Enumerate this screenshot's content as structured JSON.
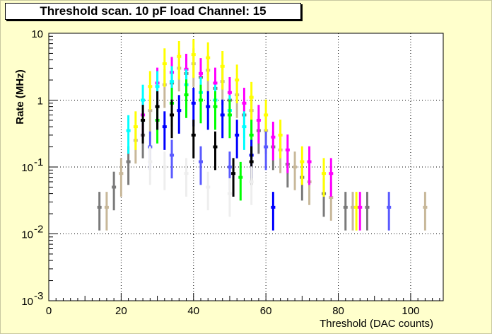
{
  "chart_data": {
    "type": "scatter",
    "title": "Threshold scan. 10 pF load Channel: 15",
    "xlabel": "Threshold (DAC counts)",
    "ylabel": "Rate (MHz)",
    "xlim": [
      0,
      109
    ],
    "ylim": [
      0.001,
      10
    ],
    "yscale": "log",
    "grid": true,
    "x_ticks": [
      0,
      20,
      40,
      60,
      80,
      100
    ],
    "y_ticks": [
      {
        "value": 0.001,
        "label": "10",
        "exp": "-3"
      },
      {
        "value": 0.01,
        "label": "10",
        "exp": "-2"
      },
      {
        "value": 0.1,
        "label": "10",
        "exp": "-1"
      },
      {
        "value": 1,
        "label": "1",
        "exp": ""
      },
      {
        "value": 10,
        "label": "10",
        "exp": ""
      }
    ],
    "colors": {
      "frame_bg": "#ffffcc",
      "plot_bg": "#ffffff",
      "series": [
        "#c8b89a",
        "#7a7a7a",
        "#ffff00",
        "#ff00ff",
        "#00ffff",
        "#00ff00",
        "#0000ff",
        "#000000",
        "#5a5aff",
        "#eeeeee"
      ]
    },
    "series": [
      {
        "color": "#7a7a7a",
        "points": [
          [
            14,
            0.025
          ],
          [
            18,
            0.05
          ],
          [
            22,
            0.12
          ],
          [
            26,
            0.3
          ],
          [
            30,
            0.8
          ],
          [
            34,
            1.8
          ],
          [
            38,
            2.5
          ],
          [
            42,
            2.2
          ],
          [
            46,
            1.5
          ],
          [
            50,
            1.0
          ],
          [
            54,
            0.6
          ],
          [
            58,
            0.35
          ],
          [
            62,
            0.2
          ],
          [
            66,
            0.11
          ],
          [
            70,
            0.07
          ],
          [
            76,
            0.04
          ],
          [
            82,
            0.025
          ],
          [
            88,
            0.025
          ]
        ]
      },
      {
        "color": "#c8b89a",
        "points": [
          [
            16,
            0.025
          ],
          [
            20,
            0.08
          ],
          [
            24,
            0.25
          ],
          [
            28,
            0.7
          ],
          [
            32,
            1.7
          ],
          [
            36,
            3.0
          ],
          [
            40,
            3.5
          ],
          [
            44,
            2.8
          ],
          [
            48,
            1.9
          ],
          [
            52,
            1.2
          ],
          [
            56,
            0.7
          ],
          [
            60,
            0.35
          ],
          [
            64,
            0.18
          ],
          [
            68,
            0.1
          ],
          [
            72,
            0.06
          ],
          [
            78,
            0.035
          ],
          [
            84,
            0.025
          ],
          [
            104,
            0.025
          ]
        ]
      },
      {
        "color": "#ffff00",
        "points": [
          [
            24,
            0.4
          ],
          [
            28,
            1.6
          ],
          [
            32,
            3.5
          ],
          [
            36,
            4.5
          ],
          [
            40,
            4.8
          ],
          [
            44,
            4.3
          ],
          [
            48,
            3.2
          ],
          [
            52,
            2.0
          ],
          [
            56,
            1.1
          ],
          [
            60,
            0.6
          ],
          [
            64,
            0.3
          ],
          [
            70,
            0.12
          ],
          [
            76,
            0.08
          ],
          [
            85,
            0.025
          ]
        ]
      },
      {
        "color": "#ff00ff",
        "points": [
          [
            26,
            0.6
          ],
          [
            30,
            1.8
          ],
          [
            34,
            2.6
          ],
          [
            38,
            2.9
          ],
          [
            42,
            2.5
          ],
          [
            46,
            1.8
          ],
          [
            50,
            1.3
          ],
          [
            54,
            0.9
          ],
          [
            58,
            0.5
          ],
          [
            62,
            0.28
          ],
          [
            66,
            0.18
          ],
          [
            72,
            0.12
          ],
          [
            78,
            0.08
          ],
          [
            86,
            0.025
          ]
        ]
      },
      {
        "color": "#00ffff",
        "points": [
          [
            22,
            0.35
          ],
          [
            26,
            1.0
          ],
          [
            30,
            1.6
          ],
          [
            34,
            1.9
          ],
          [
            38,
            1.7
          ],
          [
            42,
            1.3
          ],
          [
            46,
            1.0
          ],
          [
            50,
            0.7
          ],
          [
            54,
            0.4
          ]
        ]
      },
      {
        "color": "#00ff00",
        "points": [
          [
            30,
            0.5
          ],
          [
            34,
            0.9
          ],
          [
            38,
            1.2
          ],
          [
            42,
            1.0
          ],
          [
            46,
            0.8
          ],
          [
            50,
            0.6
          ],
          [
            53,
            0.07
          ],
          [
            56,
            0.3
          ]
        ]
      },
      {
        "color": "#0000ff",
        "points": [
          [
            32,
            0.4
          ],
          [
            36,
            0.7
          ],
          [
            40,
            0.9
          ],
          [
            44,
            0.8
          ],
          [
            48,
            0.6
          ],
          [
            52,
            0.3
          ],
          [
            56,
            0.15
          ],
          [
            62,
            0.025
          ]
        ]
      },
      {
        "color": "#000000",
        "points": [
          [
            26,
            0.5
          ],
          [
            30,
            0.8
          ],
          [
            34,
            0.6
          ],
          [
            40,
            0.3
          ],
          [
            46,
            0.2
          ],
          [
            51,
            0.08
          ],
          [
            56,
            0.12
          ]
        ]
      },
      {
        "color": "#5a5aff",
        "points": [
          [
            28,
            0.2
          ],
          [
            34,
            0.15
          ],
          [
            42,
            0.12
          ],
          [
            50,
            0.1
          ],
          [
            60,
            0.2
          ],
          [
            94,
            0.025
          ]
        ]
      },
      {
        "color": "#eeeeee",
        "points": [
          [
            28,
            0.12
          ],
          [
            32,
            0.1
          ],
          [
            38,
            0.08
          ],
          [
            44,
            0.05
          ],
          [
            50,
            0.04
          ],
          [
            56,
            0.06
          ]
        ]
      }
    ]
  }
}
